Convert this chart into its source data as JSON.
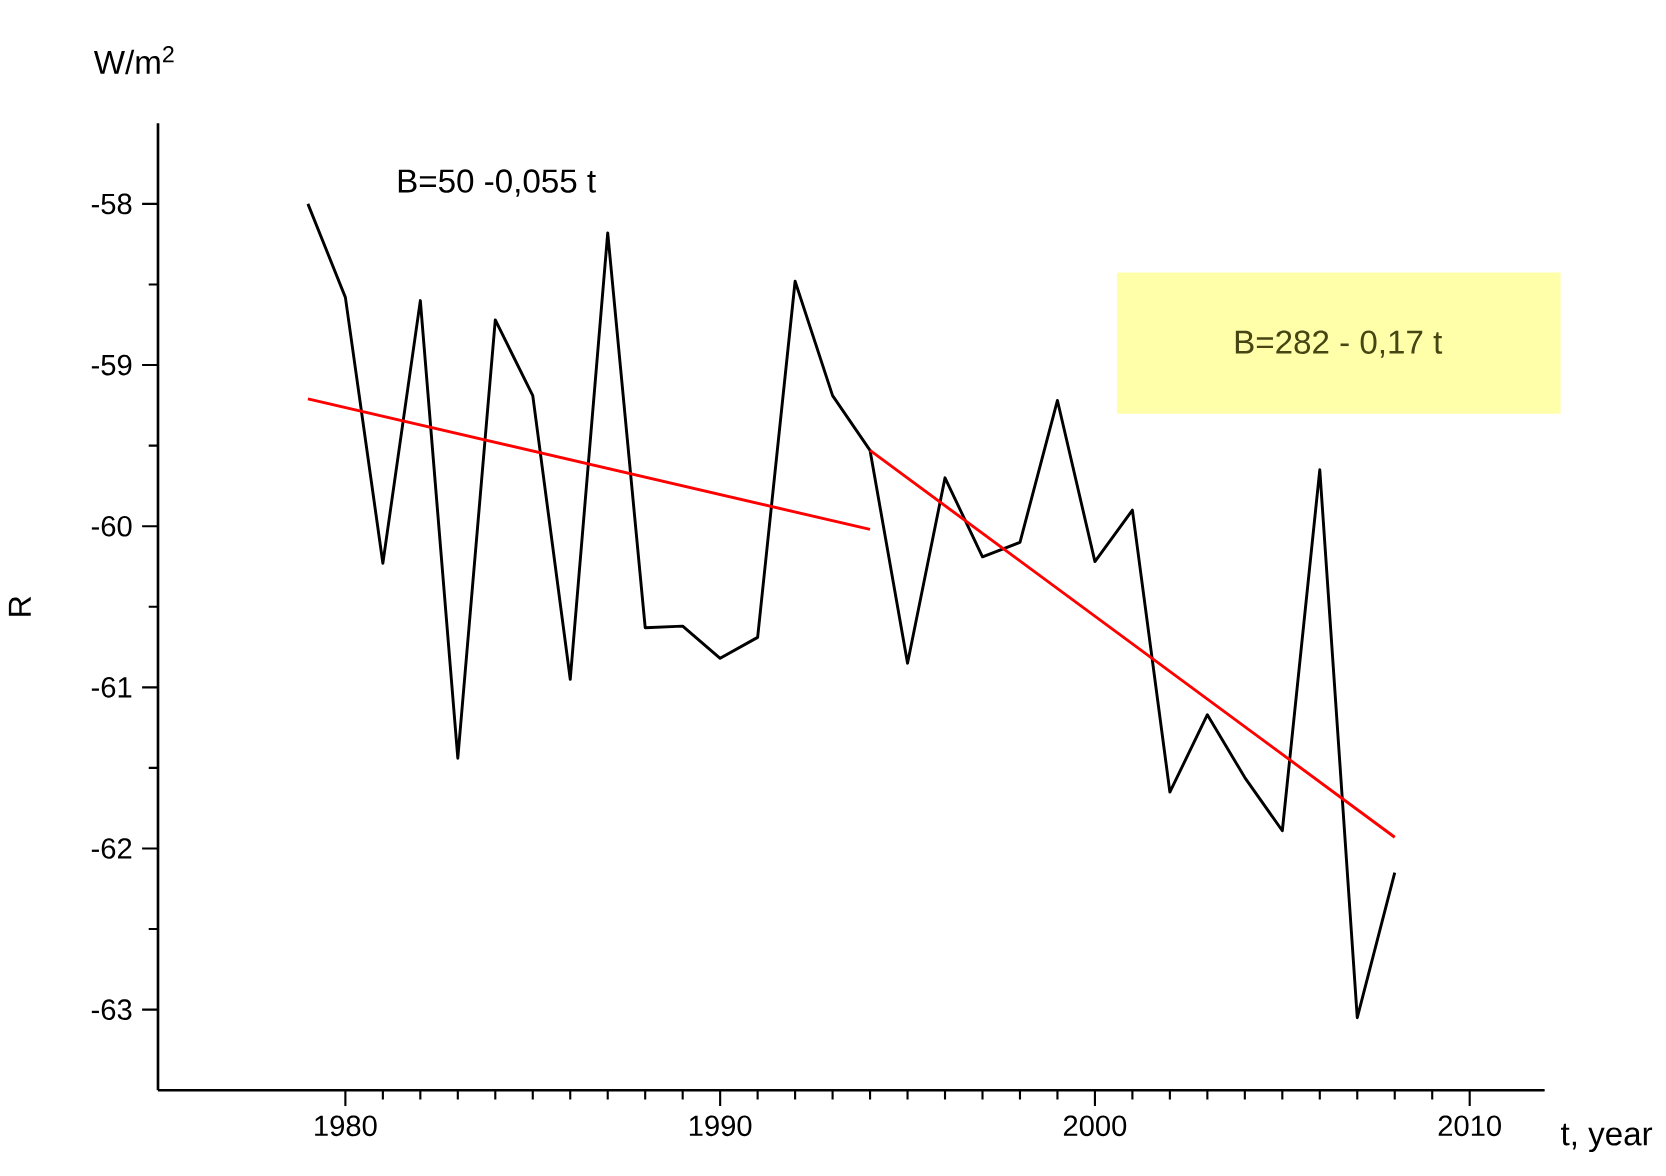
{
  "chart_data": {
    "type": "line",
    "xlabel": "t, year",
    "ylabel": "R",
    "annotations": [
      "W/m$^{2}$",
      "B=50 -0,055 t",
      "B=282 - 0,17 t"
    ],
    "xlim": [
      1975,
      2012
    ],
    "ylim": [
      -63.5,
      -57.5
    ],
    "xticks": [
      1980,
      1990,
      2000,
      2010
    ],
    "yticks": [
      -63,
      -62,
      -61,
      -60,
      -59,
      -58
    ],
    "grid": false,
    "marker": "none",
    "line_style": "solid",
    "x": [
      1979,
      1980,
      1981,
      1982,
      1983,
      1984,
      1985,
      1986,
      1987,
      1988,
      1989,
      1990,
      1991,
      1992,
      1993,
      1994,
      1995,
      1996,
      1997,
      1998,
      1999,
      2000,
      2001,
      2002,
      2003,
      2004,
      2005,
      2006,
      2007,
      2008
    ],
    "series": [
      {
        "color": "#000000",
        "values": [
          -58.0,
          -58.58,
          -60.23,
          -58.6,
          -61.44,
          -58.72,
          -59.19,
          -60.95,
          -58.18,
          -60.63,
          -60.62,
          -60.82,
          -60.69,
          -58.48,
          -59.19,
          -59.53,
          -60.85,
          -59.7,
          -60.19,
          -60.1,
          -59.22,
          -60.22,
          -59.9,
          -61.65,
          -61.17,
          -61.56,
          -61.89,
          -59.65,
          -63.05,
          -62.15
        ]
      },
      {
        "type": "line",
        "color": "#ff0000",
        "x": [
          1979,
          1994
        ],
        "values": [
          -59.21,
          -60.02
        ]
      },
      {
        "type": "line",
        "color": "#ff0000",
        "x": [
          1994,
          2008
        ],
        "values": [
          -59.53,
          -61.93
        ]
      }
    ]
  }
}
